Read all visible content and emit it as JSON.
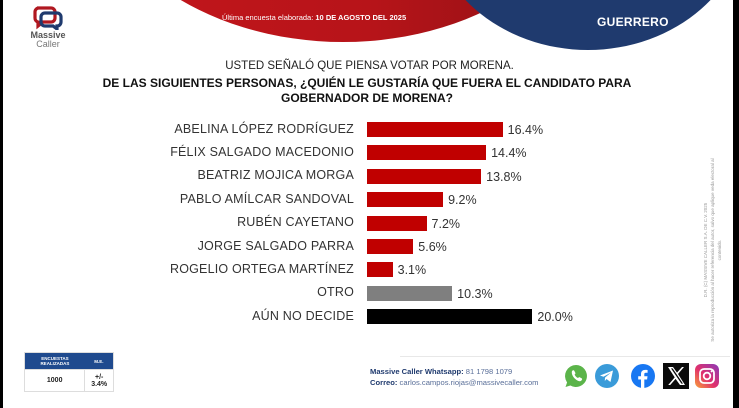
{
  "header": {
    "brand_line1": "Massive",
    "brand_line2": "Caller",
    "date_label": "Última encuesta elaborada: ",
    "date_value": "10 DE AGOSTO DEL 2025",
    "state": "GUERRERO"
  },
  "question": {
    "intro": "USTED SEÑALÓ QUE PIENSA VOTAR POR MORENA.",
    "main": "DE LAS SIGUIENTES PERSONAS, ¿QUIÉN LE GUSTARÍA QUE FUERA EL CANDIDATO PARA GOBERNADOR DE MORENA?"
  },
  "chart_data": {
    "type": "bar",
    "orientation": "horizontal",
    "title": "DE LAS SIGUIENTES PERSONAS, ¿QUIÉN LE GUSTARÍA QUE FUERA EL CANDIDATO PARA GOBERNADOR DE MORENA?",
    "xlabel": "",
    "ylabel": "",
    "unit": "%",
    "xlim": [
      0,
      20
    ],
    "grid": false,
    "categories": [
      "ABELINA LÓPEZ RODRÍGUEZ",
      "FÉLIX SALGADO MACEDONIO",
      "BEATRIZ MOJICA MORGA",
      "PABLO AMÍLCAR SANDOVAL",
      "RUBÉN CAYETANO",
      "JORGE SALGADO PARRA",
      "ROGELIO ORTEGA MARTÍNEZ",
      "OTRO",
      "AÚN NO DECIDE"
    ],
    "values": [
      16.4,
      14.4,
      13.8,
      9.2,
      7.2,
      5.6,
      3.1,
      10.3,
      20.0
    ],
    "value_labels": [
      "16.4%",
      "14.4%",
      "13.8%",
      "9.2%",
      "7.2%",
      "5.6%",
      "3.1%",
      "10.3%",
      "20.0%"
    ],
    "colors": [
      "#c00000",
      "#c00000",
      "#c00000",
      "#c00000",
      "#c00000",
      "#c00000",
      "#c00000",
      "#7f7f7f",
      "#000000"
    ]
  },
  "legal": {
    "copyright": "D.R. (C) MASSIVE CALLER S.A. DE C.V. 2025",
    "notice": "Se autoriza la reproducción al hacer referencia del autor, salvo que aplique veda electoral al contenido."
  },
  "stats": {
    "col1_header": "ENCUESTAS REALIZADAS",
    "col2_header": "M.E.",
    "surveys": "1000",
    "margin_error": "+/- 3.4%"
  },
  "contact": {
    "whatsapp_label": "Massive Caller Whatsapp:",
    "whatsapp_number": " 81 1798 1079",
    "email_label": "Correo:",
    "email": " carlos.campos.riojas@massivecaller.com"
  },
  "social": [
    "whatsapp",
    "telegram",
    "facebook",
    "x",
    "instagram"
  ],
  "colors": {
    "brand_red": "#c4161c",
    "brand_blue": "#1f3a6e",
    "bar_red": "#c00000",
    "bar_gray": "#7f7f7f",
    "bar_black": "#000000"
  }
}
